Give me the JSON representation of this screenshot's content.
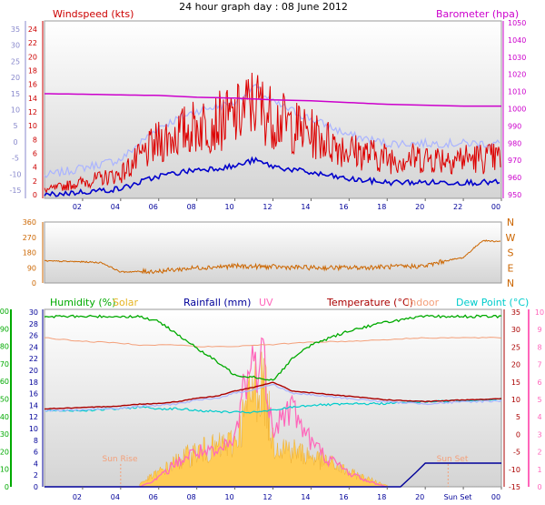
{
  "title": "24 hour graph day : 08 June 2012",
  "colors": {
    "wind": "#dd0000",
    "gust": "#aab4ff",
    "avg": "#0000cc",
    "baro": "#cc00cc",
    "dir": "#cc6600",
    "hum": "#00aa00",
    "solar": "#ffcc55",
    "rain": "#000099",
    "uv": "#ff66bb",
    "temp": "#aa0000",
    "indoor": "#f4a07a",
    "dew": "#00cccc",
    "left_axis": "#8888cc"
  },
  "top_panel": {
    "left_title": "Windspeed (kts)",
    "right_title": "Barometer (hpa)",
    "left_outer_ticks": [
      "35",
      "30",
      "25",
      "20",
      "15",
      "10",
      "5",
      "0",
      "-5",
      "-10",
      "-15"
    ],
    "left_inner_ticks": [
      "24",
      "22",
      "20",
      "18",
      "16",
      "14",
      "12",
      "10",
      "8",
      "6",
      "4",
      "2",
      "0"
    ],
    "right_ticks": [
      "1050",
      "1040",
      "1030",
      "1020",
      "1010",
      "1000",
      "990",
      "980",
      "970",
      "960",
      "950"
    ],
    "x_ticks": [
      "02",
      "04",
      "06",
      "08",
      "10",
      "12",
      "14",
      "16",
      "18",
      "20",
      "22",
      "00"
    ]
  },
  "mid_panel": {
    "left_ticks": [
      "360",
      "270",
      "180",
      "90",
      "0"
    ],
    "right_labels": [
      "N",
      "W",
      "S",
      "E",
      "N"
    ]
  },
  "bottom_panel": {
    "legend": {
      "humidity": "Humidity (%)",
      "solar": "Solar",
      "rainfall": "Rainfall (mm)",
      "uv": "UV",
      "temperature": "Temperature (°C)",
      "indoor": "Indoor",
      "dew_point": "Dew Point (°C)"
    },
    "hum_ticks": [
      "100",
      "90",
      "80",
      "70",
      "60",
      "50",
      "40",
      "30",
      "20",
      "10",
      "0"
    ],
    "rain_ticks": [
      "30",
      "28",
      "26",
      "24",
      "22",
      "20",
      "18",
      "16",
      "14",
      "12",
      "10",
      "8",
      "6",
      "4",
      "2",
      "0"
    ],
    "temp_ticks": [
      "35",
      "30",
      "25",
      "20",
      "15",
      "10",
      "5",
      "0",
      "-5",
      "-10",
      "-15"
    ],
    "uv_ticks": [
      "10",
      "9",
      "8",
      "7",
      "6",
      "5",
      "4",
      "3",
      "2",
      "1",
      "0"
    ],
    "x_ticks": [
      "02",
      "04",
      "06",
      "08",
      "10",
      "12",
      "14",
      "16",
      "18",
      "20",
      "Sun Set",
      "00"
    ],
    "sun_rise": "Sun Rise",
    "sun_set": "Sun Set"
  },
  "chart_data": [
    {
      "type": "line",
      "title": "24 hour graph day : 08 June 2012",
      "x": [
        0,
        2,
        4,
        6,
        8,
        10,
        11,
        12,
        14,
        16,
        18,
        20,
        22,
        24
      ],
      "series": [
        {
          "name": "Windspeed (kts)",
          "axis": "left",
          "values": [
            1,
            2,
            3,
            7,
            9,
            10,
            12,
            10,
            8,
            6,
            5,
            5,
            5,
            5
          ]
        },
        {
          "name": "Barometer (hpa)",
          "axis": "right",
          "values": [
            1009,
            1008.7,
            1008.3,
            1008,
            1007,
            1006.5,
            1006,
            1005.5,
            1005,
            1004,
            1003,
            1002.5,
            1002,
            1002
          ]
        }
      ],
      "ylim_left": [
        0,
        25
      ],
      "ylim_right": [
        950,
        1050
      ]
    },
    {
      "type": "line",
      "x": [
        0,
        2,
        3,
        4,
        6,
        8,
        10,
        12,
        14,
        16,
        18,
        20,
        21,
        22,
        23,
        24
      ],
      "series": [
        {
          "name": "Wind direction",
          "values": [
            130,
            125,
            120,
            65,
            70,
            90,
            100,
            95,
            90,
            90,
            95,
            100,
            130,
            150,
            250,
            245
          ]
        }
      ],
      "ylim": [
        0,
        360
      ]
    },
    {
      "type": "line",
      "x": [
        0,
        2,
        4,
        5,
        6,
        7,
        8,
        9,
        10,
        11,
        12,
        13,
        14,
        16,
        18,
        20,
        22,
        24
      ],
      "series": [
        {
          "name": "Humidity (%)",
          "axis": "humidity",
          "values": [
            96,
            96,
            96,
            96,
            93,
            86,
            78,
            71,
            63,
            62,
            60,
            72,
            80,
            88,
            93,
            96,
            96,
            96
          ]
        },
        {
          "name": "Temperature (°C)",
          "axis": "temperature",
          "values": [
            7,
            7.3,
            7.8,
            8.3,
            8.5,
            9,
            10,
            10.5,
            12,
            13,
            14.5,
            12,
            11.5,
            10.5,
            9.5,
            9,
            9.5,
            9.8
          ]
        },
        {
          "name": "Dew Point (°C)",
          "axis": "temperature",
          "values": [
            6.5,
            6.5,
            7,
            7.5,
            7,
            7,
            6.5,
            6.2,
            6,
            6,
            6.5,
            7.5,
            8,
            8.3,
            8.5,
            9,
            9.3,
            9.8
          ]
        },
        {
          "name": "Indoor",
          "axis": "temperature",
          "values": [
            27,
            26,
            25.5,
            25,
            25,
            25,
            24.5,
            24.5,
            24.5,
            25,
            25,
            25.5,
            25.8,
            26,
            26.5,
            27,
            27,
            27
          ]
        }
      ],
      "ylim_humidity": [
        0,
        100
      ],
      "ylim_temperature": [
        -15,
        35
      ]
    },
    {
      "type": "area",
      "x": [
        5,
        6,
        7,
        8,
        9,
        10,
        10.5,
        11,
        11.5,
        12,
        13,
        14,
        15,
        16,
        17,
        18
      ],
      "series": [
        {
          "name": "Solar",
          "values": [
            2,
            9,
            16,
            22,
            24,
            28,
            45,
            62,
            66,
            28,
            23,
            19,
            15,
            9,
            5,
            1
          ]
        },
        {
          "name": "UV",
          "axis": "uv",
          "values": [
            0,
            0.5,
            1.4,
            2,
            1.8,
            2.6,
            6,
            7,
            7.2,
            3.5,
            4.5,
            2.5,
            1.5,
            0.8,
            0.3,
            0
          ]
        }
      ],
      "ylim_uv": [
        0,
        10
      ]
    },
    {
      "type": "line",
      "x": [
        0,
        18.7,
        19.5,
        20,
        24
      ],
      "series": [
        {
          "name": "Rainfall (mm)",
          "axis": "rainfall",
          "values": [
            0,
            0,
            2.4,
            4,
            4
          ]
        }
      ],
      "ylim_rainfall": [
        0,
        30
      ]
    }
  ]
}
